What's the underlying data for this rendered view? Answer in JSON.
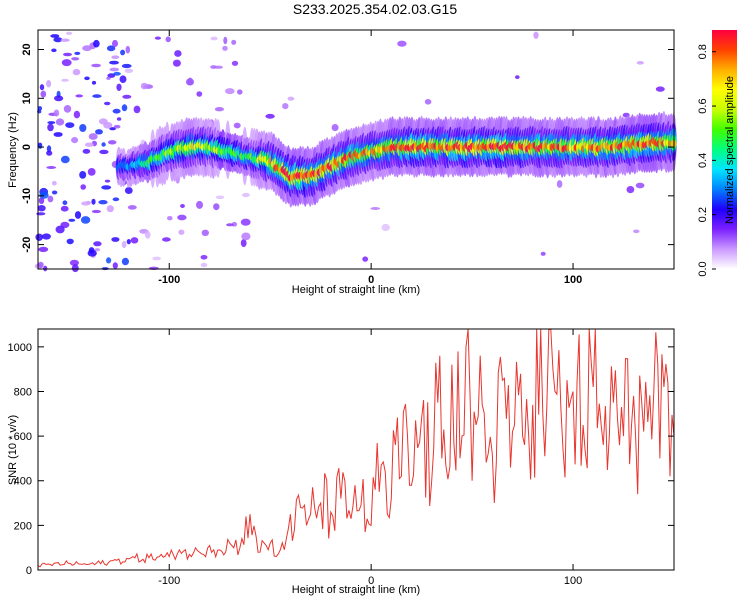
{
  "title": "S233.2025.354.02.03.G15",
  "chart_data": [
    {
      "type": "heatmap",
      "title": "S233.2025.354.02.03.G15",
      "xlabel": "Height of straight line (km)",
      "ylabel": "Frequency (Hz)",
      "xlim": [
        -165,
        150
      ],
      "ylim": [
        -25,
        24
      ],
      "xticks": [
        -100,
        0,
        100
      ],
      "yticks": [
        -20,
        -10,
        0,
        10,
        20
      ],
      "colorbar": {
        "label": "Normalized spectral amplitude",
        "range": [
          0,
          0.88
        ],
        "ticks": [
          "0.0",
          "0.2",
          "0.4",
          "0.6",
          "0.8"
        ],
        "colors": [
          "#ffffff",
          "#cc99ff",
          "#7a1fff",
          "#1e00ff",
          "#0080ff",
          "#00e5ff",
          "#00ff80",
          "#40ff00",
          "#c8ff00",
          "#ffff00",
          "#ffb000",
          "#ff4000",
          "#ff0040"
        ]
      },
      "ridge": {
        "x": [
          -120,
          -110,
          -100,
          -90,
          -80,
          -70,
          -60,
          -50,
          -40,
          -35,
          -30,
          -20,
          -10,
          0,
          10,
          20,
          40,
          60,
          80,
          100,
          120,
          140,
          150
        ],
        "frequency": [
          -4,
          -3,
          -1,
          0,
          0,
          -1,
          -2,
          -3,
          -6,
          -6,
          -6,
          -4,
          -2,
          -1,
          0,
          0,
          0,
          0,
          0,
          0,
          0,
          1,
          1
        ],
        "peak_amplitude": [
          0.3,
          0.45,
          0.55,
          0.65,
          0.6,
          0.5,
          0.45,
          0.75,
          0.85,
          0.88,
          0.85,
          0.8,
          0.8,
          0.7,
          0.75,
          0.85,
          0.8,
          0.85,
          0.8,
          0.75,
          0.8,
          0.85,
          0.7
        ]
      }
    },
    {
      "type": "line",
      "xlabel": "Height of straight line (km)",
      "ylabel": "SNR (10 * v/v)",
      "xlim": [
        -165,
        150
      ],
      "ylim": [
        0,
        1080
      ],
      "xticks": [
        -100,
        0,
        100
      ],
      "yticks": [
        0,
        200,
        400,
        600,
        800,
        1000
      ],
      "color": "#e8352e",
      "series": [
        {
          "x": [
            -165,
            -150,
            -140,
            -130,
            -120,
            -110,
            -100,
            -95,
            -90,
            -85,
            -80,
            -75,
            -70,
            -65,
            -60,
            -57,
            -55,
            -52,
            -50,
            -47,
            -45,
            -42,
            -40,
            -38,
            -35,
            -32,
            -30,
            -25,
            -20,
            -15,
            -10,
            -8,
            -5,
            0,
            2,
            5,
            8,
            10,
            12,
            15,
            18,
            20,
            25,
            30,
            33,
            35,
            40,
            45,
            47,
            50,
            55,
            60,
            65,
            70,
            75,
            80,
            82,
            85,
            90,
            95,
            100,
            105,
            110,
            115,
            120,
            125,
            130,
            135,
            140,
            143,
            145,
            148,
            150
          ],
          "y": [
            20,
            30,
            25,
            35,
            50,
            55,
            60,
            90,
            70,
            80,
            110,
            90,
            120,
            100,
            250,
            150,
            80,
            110,
            120,
            60,
            90,
            140,
            250,
            180,
            280,
            200,
            250,
            300,
            260,
            320,
            230,
            380,
            290,
            200,
            360,
            470,
            250,
            320,
            560,
            420,
            600,
            380,
            680,
            400,
            750,
            500,
            920,
            600,
            1000,
            400,
            740,
            520,
            850,
            620,
            600,
            740,
            1080,
            700,
            900,
            540,
            800,
            650,
            820,
            560,
            750,
            600,
            780,
            620,
            800,
            500,
            820,
            420,
            600
          ]
        }
      ]
    }
  ]
}
